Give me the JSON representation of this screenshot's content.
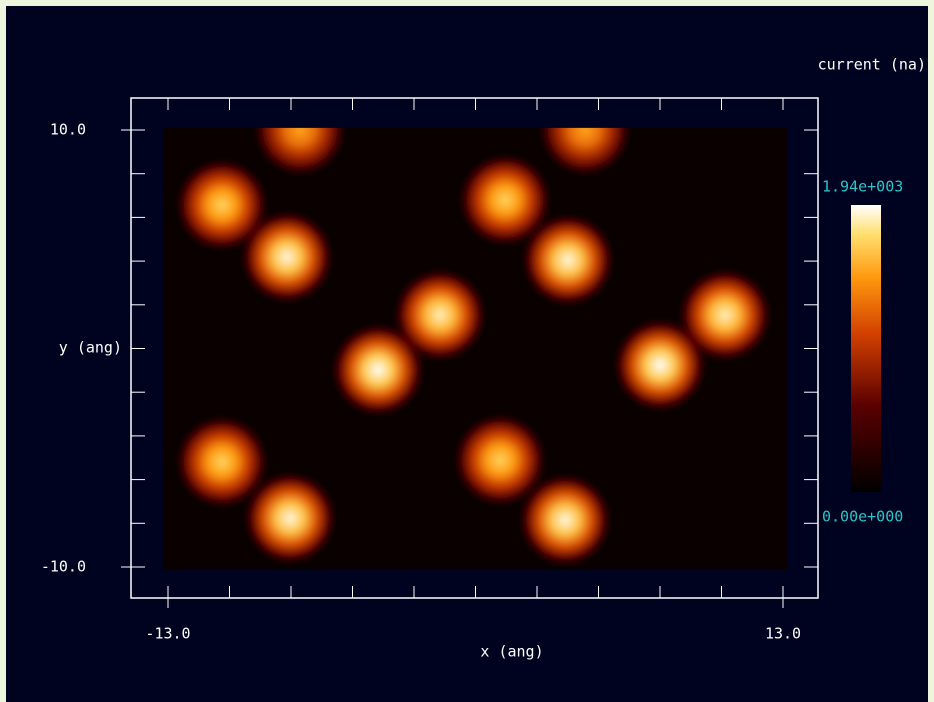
{
  "chart_data": {
    "type": "heatmap",
    "xlabel": "x (ang)",
    "ylabel": "y (ang)",
    "xlim": [
      -13,
      13
    ],
    "ylim": [
      -10,
      10
    ],
    "xticks": [
      {
        "value": -13,
        "label": "-13.0"
      },
      {
        "value": 13,
        "label": "13.0"
      }
    ],
    "yticks": [
      {
        "value": 10,
        "label": "10.0"
      },
      {
        "value": -10,
        "label": "-10.0"
      }
    ],
    "minor_divisions": 10,
    "extent": [
      -13.2,
      13.2,
      -10.1,
      10.1
    ],
    "peaks": {
      "x": [
        -10.72,
        -7.97,
        1.25,
        3.91,
        -4.12,
        -1.5,
        7.8,
        10.55,
        -10.72,
        -7.84,
        1.04,
        3.79,
        -7.42,
        4.63
      ],
      "y": [
        6.57,
        4.19,
        6.8,
        4.05,
        -0.98,
        1.53,
        -0.76,
        1.53,
        -5.19,
        -7.76,
        -5.1,
        -7.85,
        10,
        10
      ],
      "z": [
        1700,
        1900,
        1700,
        1900,
        1940,
        1850,
        1940,
        1850,
        1700,
        1900,
        1700,
        1900,
        1500,
        1500
      ]
    },
    "colorbar": {
      "label": "current (na)",
      "lim": [
        0,
        1940
      ],
      "ticks": [
        {
          "value": 1940,
          "label": "1.94e+003"
        },
        {
          "value": 0,
          "label": "0.00e+000"
        }
      ]
    }
  }
}
